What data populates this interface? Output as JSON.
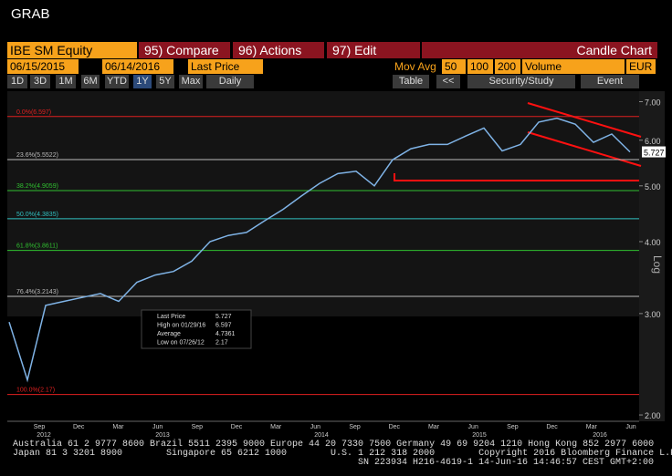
{
  "header": {
    "title": "GRAB"
  },
  "toolbar": {
    "security": "IBE SM Equity",
    "menu": [
      "95) Compare",
      "96) Actions",
      "97) Edit"
    ],
    "chart_type": "Candle Chart"
  },
  "range": {
    "start": "06/15/2015",
    "end": "06/14/2016",
    "field": "Last Price",
    "mov_avg_label": "Mov Avg",
    "mov_avg": [
      50,
      100,
      200
    ],
    "lower": "Volume",
    "currency": "EUR"
  },
  "periods": [
    "1D",
    "3D",
    "1M",
    "6M",
    "YTD",
    "1Y",
    "5Y",
    "Max"
  ],
  "frequency": "Daily",
  "tools": [
    "Table",
    "<<",
    "Security/Study",
    "Event"
  ],
  "chart_data": {
    "type": "line",
    "log": true,
    "ylabel": "Log",
    "ylim": [
      1.95,
      7.3
    ],
    "yticks": [
      {
        "value": 2,
        "label": "2.00"
      },
      {
        "value": 3,
        "label": "3.00"
      },
      {
        "value": 4,
        "label": "4.00"
      },
      {
        "value": 5,
        "label": "5.00"
      },
      {
        "value": 6,
        "label": "6.00"
      },
      {
        "value": 7,
        "label": "7.00"
      }
    ],
    "months": [
      "Sep",
      "Dec",
      "Mar",
      "Jun",
      "Sep",
      "Dec",
      "Mar",
      "Jun",
      "Sep",
      "Dec",
      "Mar",
      "Jun",
      "Sep",
      "Dec",
      "Mar",
      "Jun"
    ],
    "years": [
      "2012",
      "2013",
      "2014",
      "2015",
      "2016"
    ],
    "fib_levels": [
      {
        "label": "0.0%(6.597)",
        "value": 6.597,
        "color": "#e02020"
      },
      {
        "label": "23.6%(5.5522)",
        "value": 5.5522,
        "color": "#bbbbbb"
      },
      {
        "label": "38.2%(4.9059)",
        "value": 4.9059,
        "color": "#30c030"
      },
      {
        "label": "50.0%(4.3835)",
        "value": 4.3835,
        "color": "#30c0c0"
      },
      {
        "label": "61.8%(3.8611)",
        "value": 3.8611,
        "color": "#30c030"
      },
      {
        "label": "76.4%(3.2143)",
        "value": 3.2143,
        "color": "#bbbbbb"
      },
      {
        "label": "100.0%(2.17)",
        "value": 2.17,
        "color": "#e02020"
      }
    ],
    "series": [
      {
        "name": "Last Price",
        "color": "#7fb3e6",
        "values": [
          2.9,
          2.3,
          3.1,
          3.15,
          3.2,
          3.25,
          3.15,
          3.4,
          3.5,
          3.55,
          3.7,
          4.0,
          4.1,
          4.15,
          4.35,
          4.55,
          4.8,
          5.05,
          5.25,
          5.3,
          5.0,
          5.55,
          5.8,
          5.9,
          5.9,
          6.1,
          6.3,
          5.75,
          5.9,
          6.45,
          6.55,
          6.4,
          5.95,
          6.15,
          5.727
        ]
      }
    ]
  },
  "legend": [
    {
      "label": "Last Price",
      "value": 5.727
    },
    {
      "label": "High on 01/29/16",
      "value": 6.597
    },
    {
      "label": "Average",
      "value": 4.7361
    },
    {
      "label": "Low on 07/26/12",
      "value": 2.17
    }
  ],
  "footer": [
    "Australia 61 2 9777 8600 Brazil 5511 2395 9000 Europe 44 20 7330 7500 Germany 49 69 9204 1210 Hong Kong 852 2977 6000",
    "Japan 81 3 3201 8900        Singapore 65 6212 1000        U.S. 1 212 318 2000        Copyright 2016 Bloomberg Finance L.P.",
    "SN 223934 H216-4619-1 14-Jun-16 14:46:57 CEST GMT+2:00"
  ]
}
